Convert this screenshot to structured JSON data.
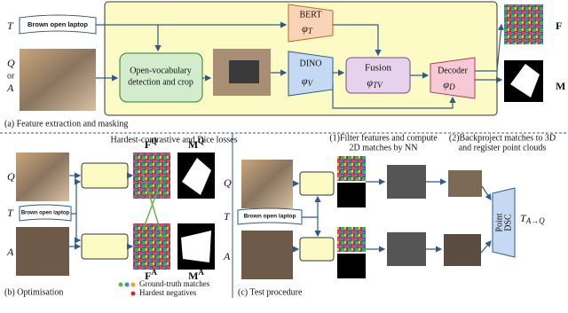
{
  "panel_a": {
    "caption": "(a) Feature extraction and masking",
    "text_var": "T",
    "prompt": "Brown open laptop",
    "query_var": "Q",
    "or": "or",
    "anchor_var": "A",
    "detect": [
      "Open-vocabulary",
      "detection and crop"
    ],
    "bert": {
      "name": "BERT",
      "symbol": "φ",
      "sub": "T"
    },
    "dino": {
      "name": "DINO",
      "symbol": "φ",
      "sub": "V"
    },
    "fusion": {
      "name": "Fusion",
      "symbol": "φ",
      "sub": "TV"
    },
    "decoder": {
      "name": "Decoder",
      "symbol": "φ",
      "sub": "D"
    },
    "features": "F",
    "mask": "M"
  },
  "panel_b": {
    "caption": "(b) Optimisation",
    "losses": "Hardest-contrastive and Dice losses",
    "query_var": "Q",
    "text_var": "T",
    "prompt": "Brown open laptop",
    "anchor_var": "A",
    "features_q": {
      "base": "F",
      "sup": "Q"
    },
    "mask_q": {
      "base": "M",
      "sup": "Q"
    },
    "features_a": {
      "base": "F",
      "sup": "A"
    },
    "mask_a": {
      "base": "M",
      "sup": "A"
    },
    "legend": [
      "Ground-truth matches",
      "Hardest negatives"
    ]
  },
  "panel_c": {
    "caption": "(c) Test procedure",
    "filter_step": [
      "(1)Filter features and compute",
      "2D matches by NN"
    ],
    "register_step": [
      "(2)Backproject matches to 3D",
      "and register point clouds"
    ],
    "query_var": "Q",
    "text_var": "T",
    "prompt": "Brown open laptop",
    "anchor_var": "A",
    "dsc": [
      "Point",
      "DSC"
    ],
    "transform": {
      "base": "T",
      "sub": "A→Q"
    }
  }
}
